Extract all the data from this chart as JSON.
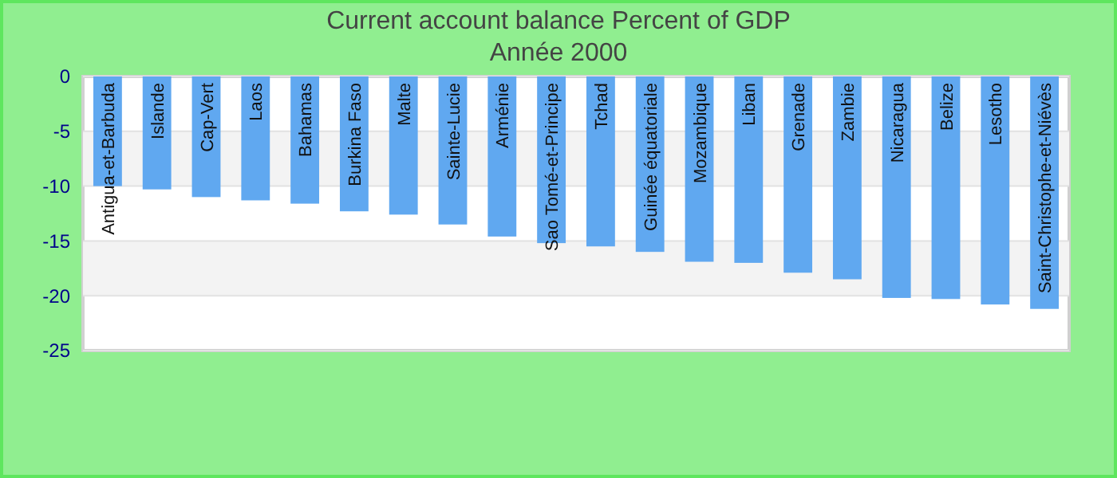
{
  "chart_data": {
    "type": "bar",
    "title": "Current account balance  Percent of GDP",
    "subtitle": "Année 2000",
    "categories": [
      "Antigua-et-Barbuda",
      "Islande",
      "Cap-Vert",
      "Laos",
      "Bahamas",
      "Burkina Faso",
      "Malte",
      "Sainte-Lucie",
      "Arménie",
      "Sao Tomé-et-Principe",
      "Tchad",
      "Guinée équatoriale",
      "Mozambique",
      "Liban",
      "Grenade",
      "Zambie",
      "Nicaragua",
      "Belize",
      "Lesotho",
      "Saint-Christophe-et-Niévès"
    ],
    "values": [
      -10.0,
      -10.3,
      -11.0,
      -11.3,
      -11.6,
      -12.3,
      -12.6,
      -13.5,
      -14.6,
      -15.2,
      -15.5,
      -16.0,
      -16.9,
      -17.0,
      -17.9,
      -18.5,
      -20.2,
      -20.3,
      -20.8,
      -21.2
    ],
    "color": "#60a8f0",
    "ylim": [
      -25,
      0
    ],
    "yticks": [
      -25,
      -20,
      -15,
      -10,
      -5,
      0
    ],
    "grid": "y"
  }
}
